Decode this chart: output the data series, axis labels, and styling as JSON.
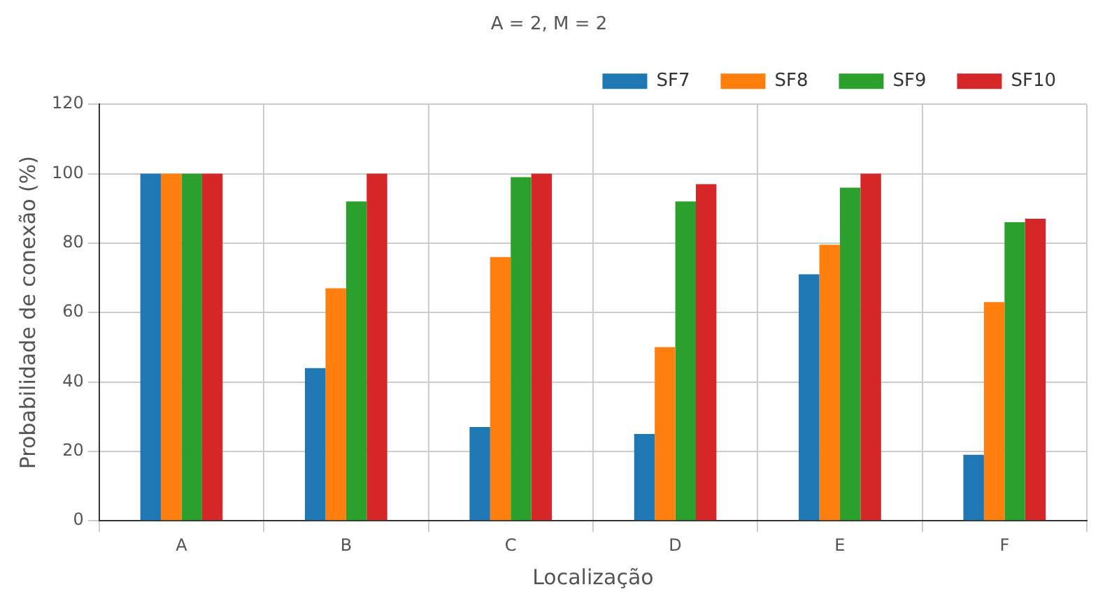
{
  "chart_data": {
    "type": "bar",
    "title": "A = 2, M = 2",
    "xlabel": "Localização",
    "ylabel": "Probabilidade de conexão (%)",
    "categories": [
      "A",
      "B",
      "C",
      "D",
      "E",
      "F"
    ],
    "series": [
      {
        "name": "SF7",
        "color": "#1f77b4",
        "values": [
          100,
          44,
          27,
          25,
          71,
          19
        ]
      },
      {
        "name": "SF8",
        "color": "#ff7f0e",
        "values": [
          100,
          67,
          76,
          50,
          79.5,
          63
        ]
      },
      {
        "name": "SF9",
        "color": "#2ca02c",
        "values": [
          100,
          92,
          99,
          92,
          96,
          86
        ]
      },
      {
        "name": "SF10",
        "color": "#d62728",
        "values": [
          100,
          100,
          100,
          97,
          100,
          87
        ]
      }
    ],
    "ylim": [
      0,
      120
    ],
    "yticks": [
      0,
      20,
      40,
      60,
      80,
      100,
      120
    ],
    "grid": true,
    "legend": "top right"
  }
}
